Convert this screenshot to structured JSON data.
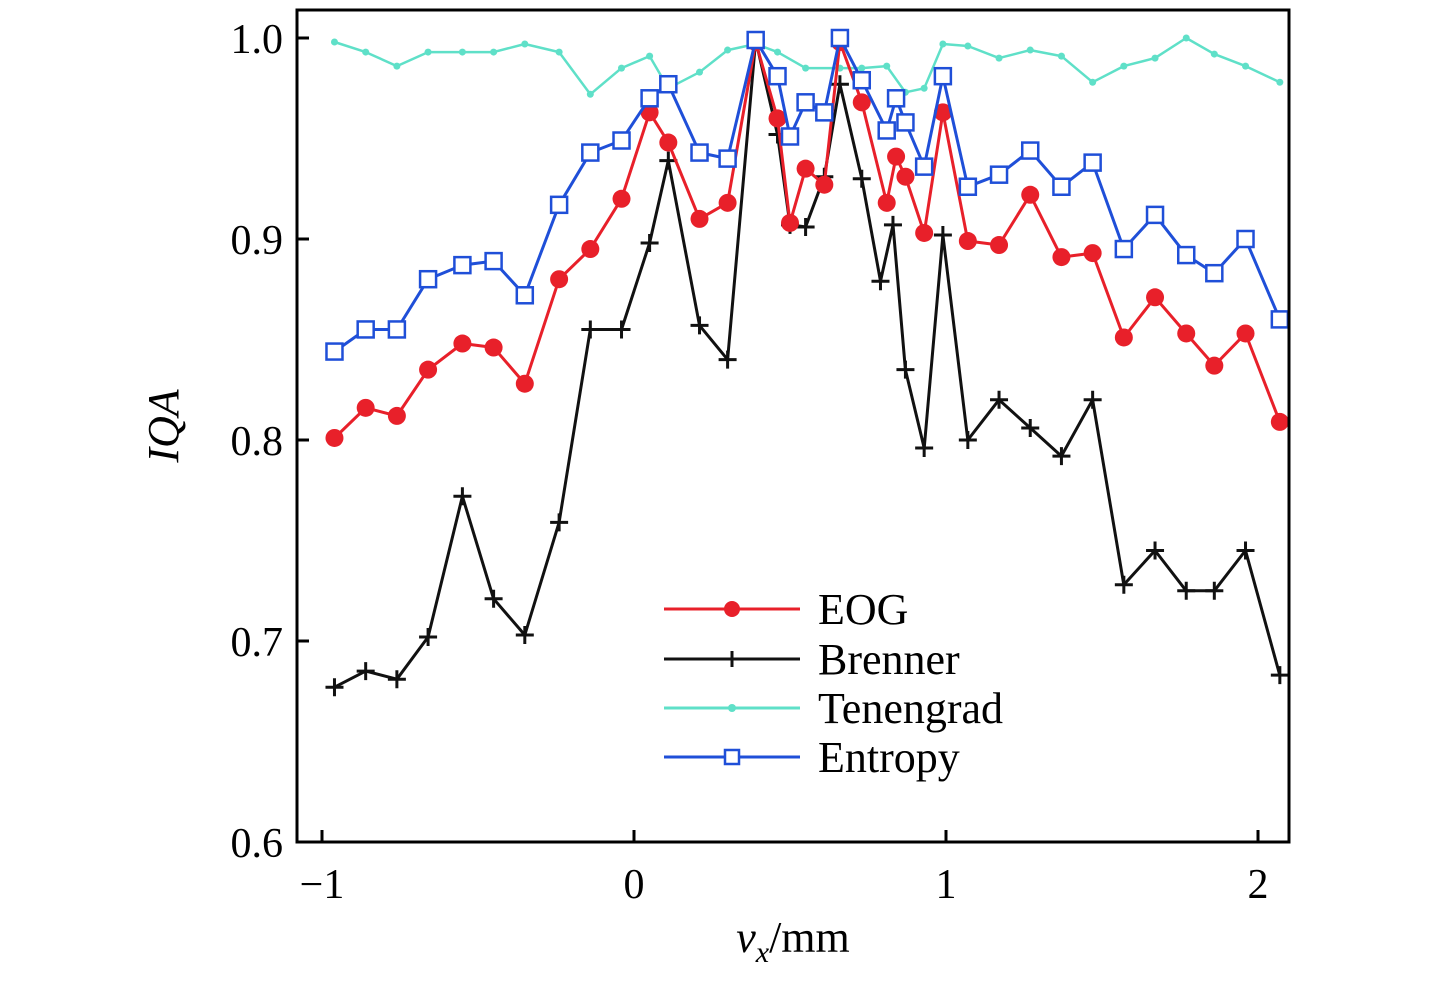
{
  "chart_data": {
    "type": "line",
    "xlabel": {
      "var": "v",
      "sub": "x",
      "unit": "/mm"
    },
    "ylabel": "IQA",
    "xlim": [
      -1.08,
      2.1
    ],
    "ylim": [
      0.6,
      1.02
    ],
    "xticks": [
      -1,
      0,
      1,
      2
    ],
    "xtick_labels": [
      "−1",
      "0",
      "1",
      "2"
    ],
    "yticks": [
      0.6,
      0.7,
      0.8,
      0.9,
      1.0
    ],
    "ytick_labels": [
      "0.6",
      "0.7",
      "0.8",
      "0.9",
      "1.0"
    ],
    "grid": false,
    "legend_position": "lower-center",
    "series": [
      {
        "name": "EOG",
        "color": "#e8202a",
        "marker": "circle",
        "points": [
          [
            -0.96,
            0.801
          ],
          [
            -0.86,
            0.816
          ],
          [
            -0.76,
            0.812
          ],
          [
            -0.66,
            0.835
          ],
          [
            -0.55,
            0.848
          ],
          [
            -0.45,
            0.846
          ],
          [
            -0.35,
            0.828
          ],
          [
            -0.24,
            0.88
          ],
          [
            -0.14,
            0.895
          ],
          [
            -0.04,
            0.92
          ],
          [
            0.05,
            0.963
          ],
          [
            0.11,
            0.948
          ],
          [
            0.21,
            0.91
          ],
          [
            0.3,
            0.918
          ],
          [
            0.39,
            0.998
          ],
          [
            0.46,
            0.96
          ],
          [
            0.5,
            0.908
          ],
          [
            0.55,
            0.935
          ],
          [
            0.61,
            0.927
          ],
          [
            0.66,
            0.998
          ],
          [
            0.73,
            0.968
          ],
          [
            0.81,
            0.918
          ],
          [
            0.84,
            0.941
          ],
          [
            0.87,
            0.931
          ],
          [
            0.93,
            0.903
          ],
          [
            0.99,
            0.963
          ],
          [
            1.07,
            0.899
          ],
          [
            1.17,
            0.897
          ],
          [
            1.27,
            0.922
          ],
          [
            1.37,
            0.891
          ],
          [
            1.47,
            0.893
          ],
          [
            1.57,
            0.851
          ],
          [
            1.67,
            0.871
          ],
          [
            1.77,
            0.853
          ],
          [
            1.86,
            0.837
          ],
          [
            1.96,
            0.853
          ],
          [
            2.07,
            0.809
          ]
        ]
      },
      {
        "name": "Brenner",
        "color": "#111111",
        "marker": "plus",
        "points": [
          [
            -0.96,
            0.677
          ],
          [
            -0.86,
            0.685
          ],
          [
            -0.76,
            0.681
          ],
          [
            -0.66,
            0.702
          ],
          [
            -0.55,
            0.772
          ],
          [
            -0.45,
            0.721
          ],
          [
            -0.35,
            0.703
          ],
          [
            -0.24,
            0.759
          ],
          [
            -0.14,
            0.855
          ],
          [
            -0.04,
            0.855
          ],
          [
            0.05,
            0.898
          ],
          [
            0.11,
            0.939
          ],
          [
            0.21,
            0.857
          ],
          [
            0.3,
            0.84
          ],
          [
            0.39,
            0.999
          ],
          [
            0.46,
            0.952
          ],
          [
            0.5,
            0.907
          ],
          [
            0.55,
            0.906
          ],
          [
            0.61,
            0.931
          ],
          [
            0.66,
            0.977
          ],
          [
            0.73,
            0.93
          ],
          [
            0.79,
            0.879
          ],
          [
            0.83,
            0.907
          ],
          [
            0.87,
            0.835
          ],
          [
            0.93,
            0.796
          ],
          [
            0.99,
            0.902
          ],
          [
            1.07,
            0.8
          ],
          [
            1.17,
            0.82
          ],
          [
            1.27,
            0.806
          ],
          [
            1.37,
            0.792
          ],
          [
            1.47,
            0.82
          ],
          [
            1.57,
            0.728
          ],
          [
            1.67,
            0.745
          ],
          [
            1.77,
            0.725
          ],
          [
            1.86,
            0.725
          ],
          [
            1.96,
            0.745
          ],
          [
            2.07,
            0.683
          ]
        ]
      },
      {
        "name": "Tenengrad",
        "color": "#5fe0c8",
        "marker": "dot",
        "points": [
          [
            -0.96,
            0.998
          ],
          [
            -0.86,
            0.993
          ],
          [
            -0.76,
            0.986
          ],
          [
            -0.66,
            0.993
          ],
          [
            -0.55,
            0.993
          ],
          [
            -0.45,
            0.993
          ],
          [
            -0.35,
            0.997
          ],
          [
            -0.24,
            0.993
          ],
          [
            -0.14,
            0.972
          ],
          [
            -0.04,
            0.985
          ],
          [
            0.05,
            0.991
          ],
          [
            0.11,
            0.975
          ],
          [
            0.21,
            0.983
          ],
          [
            0.3,
            0.994
          ],
          [
            0.39,
            0.997
          ],
          [
            0.46,
            0.993
          ],
          [
            0.55,
            0.985
          ],
          [
            0.66,
            0.985
          ],
          [
            0.73,
            0.985
          ],
          [
            0.81,
            0.986
          ],
          [
            0.87,
            0.973
          ],
          [
            0.93,
            0.975
          ],
          [
            0.99,
            0.997
          ],
          [
            1.07,
            0.996
          ],
          [
            1.17,
            0.99
          ],
          [
            1.27,
            0.994
          ],
          [
            1.37,
            0.991
          ],
          [
            1.47,
            0.978
          ],
          [
            1.57,
            0.986
          ],
          [
            1.67,
            0.99
          ],
          [
            1.77,
            1.0
          ],
          [
            1.86,
            0.992
          ],
          [
            1.96,
            0.986
          ],
          [
            2.07,
            0.978
          ]
        ]
      },
      {
        "name": "Entropy",
        "color": "#1f4fd8",
        "marker": "square",
        "points": [
          [
            -0.96,
            0.844
          ],
          [
            -0.86,
            0.855
          ],
          [
            -0.76,
            0.855
          ],
          [
            -0.66,
            0.88
          ],
          [
            -0.55,
            0.887
          ],
          [
            -0.45,
            0.889
          ],
          [
            -0.35,
            0.872
          ],
          [
            -0.24,
            0.917
          ],
          [
            -0.14,
            0.943
          ],
          [
            -0.04,
            0.949
          ],
          [
            0.05,
            0.97
          ],
          [
            0.11,
            0.977
          ],
          [
            0.21,
            0.943
          ],
          [
            0.3,
            0.94
          ],
          [
            0.39,
            0.999
          ],
          [
            0.46,
            0.981
          ],
          [
            0.5,
            0.951
          ],
          [
            0.55,
            0.968
          ],
          [
            0.61,
            0.963
          ],
          [
            0.66,
            1.0
          ],
          [
            0.73,
            0.979
          ],
          [
            0.81,
            0.954
          ],
          [
            0.84,
            0.97
          ],
          [
            0.87,
            0.958
          ],
          [
            0.93,
            0.936
          ],
          [
            0.99,
            0.981
          ],
          [
            1.07,
            0.926
          ],
          [
            1.17,
            0.932
          ],
          [
            1.27,
            0.944
          ],
          [
            1.37,
            0.926
          ],
          [
            1.47,
            0.938
          ],
          [
            1.57,
            0.895
          ],
          [
            1.67,
            0.912
          ],
          [
            1.77,
            0.892
          ],
          [
            1.86,
            0.883
          ],
          [
            1.96,
            0.9
          ],
          [
            2.07,
            0.86
          ]
        ]
      }
    ]
  }
}
